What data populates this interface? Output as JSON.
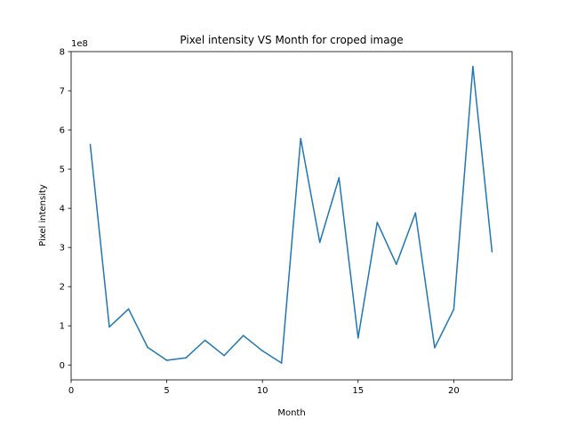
{
  "chart_data": {
    "type": "line",
    "title": "Pixel intensity VS Month for croped image",
    "xlabel": "Month",
    "ylabel": "Pixel intensity",
    "y_offset_text": "1e8",
    "xlim": [
      0,
      23.05
    ],
    "ylim": [
      -0.38,
      8.0
    ],
    "y_scale_note": "values in units of 1e8",
    "x_ticks": [
      0,
      5,
      10,
      15,
      20
    ],
    "x_tick_labels": [
      "0",
      "5",
      "10",
      "15",
      "20"
    ],
    "y_ticks": [
      0,
      1,
      2,
      3,
      4,
      5,
      6,
      7,
      8
    ],
    "y_tick_labels": [
      "0",
      "1",
      "2",
      "3",
      "4",
      "5",
      "6",
      "7",
      "8"
    ],
    "grid": false,
    "series": [
      {
        "color": "#1f77b4",
        "x": [
          1,
          2,
          3,
          4,
          5,
          6,
          7,
          8,
          9,
          10,
          11,
          12,
          13,
          14,
          15,
          16,
          17,
          18,
          19,
          20,
          21,
          22
        ],
        "values": [
          5.63,
          0.97,
          1.43,
          0.45,
          0.12,
          0.18,
          0.63,
          0.24,
          0.75,
          0.36,
          0.05,
          5.78,
          3.13,
          4.78,
          0.69,
          3.64,
          2.57,
          3.88,
          0.44,
          1.42,
          7.62,
          2.89
        ]
      }
    ]
  }
}
